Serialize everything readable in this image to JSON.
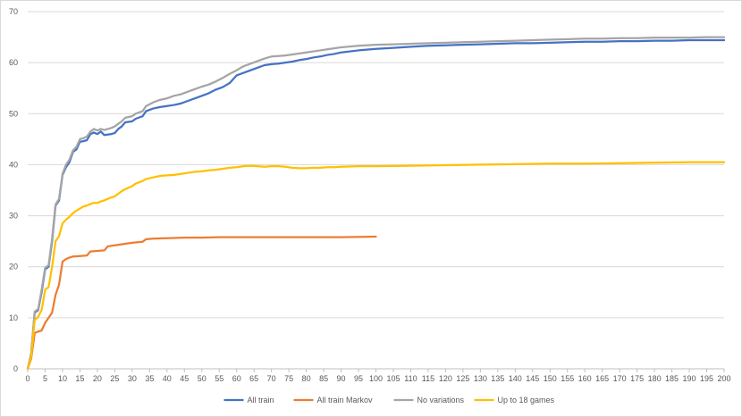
{
  "chart_data": {
    "type": "line",
    "title": "",
    "xlabel": "",
    "ylabel": "",
    "xlim": [
      0,
      200
    ],
    "ylim": [
      0,
      70
    ],
    "x_tick_step": 5,
    "y_ticks": [
      0,
      10,
      20,
      30,
      40,
      50,
      60,
      70
    ],
    "grid": "horizontal",
    "legend_position": "bottom",
    "series": [
      {
        "name": "All train",
        "color": "#4472c4",
        "points": [
          [
            0,
            0
          ],
          [
            1,
            3
          ],
          [
            2,
            11
          ],
          [
            3,
            11.5
          ],
          [
            4,
            15
          ],
          [
            5,
            19.5
          ],
          [
            6,
            20
          ],
          [
            7,
            25
          ],
          [
            8,
            32
          ],
          [
            9,
            33
          ],
          [
            10,
            38
          ],
          [
            11,
            39.5
          ],
          [
            12,
            40.5
          ],
          [
            13,
            42.5
          ],
          [
            14,
            43
          ],
          [
            15,
            44.5
          ],
          [
            16,
            44.6
          ],
          [
            17,
            44.8
          ],
          [
            18,
            46
          ],
          [
            19,
            46.3
          ],
          [
            20,
            46
          ],
          [
            21,
            46.5
          ],
          [
            22,
            45.8
          ],
          [
            24,
            46
          ],
          [
            25,
            46.2
          ],
          [
            26,
            47
          ],
          [
            27,
            47.5
          ],
          [
            28,
            48.3
          ],
          [
            30,
            48.5
          ],
          [
            31,
            49
          ],
          [
            33,
            49.5
          ],
          [
            34,
            50.5
          ],
          [
            36,
            51
          ],
          [
            38,
            51.3
          ],
          [
            40,
            51.5
          ],
          [
            42,
            51.7
          ],
          [
            44,
            52
          ],
          [
            46,
            52.5
          ],
          [
            48,
            53
          ],
          [
            50,
            53.5
          ],
          [
            52,
            54
          ],
          [
            54,
            54.7
          ],
          [
            56,
            55.2
          ],
          [
            58,
            56
          ],
          [
            60,
            57.5
          ],
          [
            62,
            58
          ],
          [
            64,
            58.5
          ],
          [
            66,
            59
          ],
          [
            68,
            59.5
          ],
          [
            70,
            59.7
          ],
          [
            72,
            59.8
          ],
          [
            74,
            60
          ],
          [
            76,
            60.2
          ],
          [
            78,
            60.5
          ],
          [
            80,
            60.7
          ],
          [
            82,
            61
          ],
          [
            84,
            61.2
          ],
          [
            86,
            61.5
          ],
          [
            88,
            61.7
          ],
          [
            90,
            62
          ],
          [
            95,
            62.4
          ],
          [
            100,
            62.7
          ],
          [
            105,
            62.9
          ],
          [
            110,
            63.1
          ],
          [
            115,
            63.3
          ],
          [
            120,
            63.4
          ],
          [
            125,
            63.5
          ],
          [
            130,
            63.6
          ],
          [
            135,
            63.7
          ],
          [
            140,
            63.8
          ],
          [
            145,
            63.8
          ],
          [
            150,
            63.9
          ],
          [
            155,
            64
          ],
          [
            160,
            64.1
          ],
          [
            165,
            64.1
          ],
          [
            170,
            64.2
          ],
          [
            175,
            64.2
          ],
          [
            180,
            64.3
          ],
          [
            185,
            64.3
          ],
          [
            190,
            64.4
          ],
          [
            195,
            64.4
          ],
          [
            200,
            64.4
          ]
        ]
      },
      {
        "name": "All train Markov",
        "color": "#ed7d31",
        "points": [
          [
            0,
            0
          ],
          [
            1,
            2
          ],
          [
            2,
            7
          ],
          [
            3,
            7.3
          ],
          [
            4,
            7.5
          ],
          [
            5,
            9
          ],
          [
            6,
            10
          ],
          [
            7,
            11
          ],
          [
            8,
            14.5
          ],
          [
            9,
            16.5
          ],
          [
            10,
            21
          ],
          [
            11,
            21.5
          ],
          [
            12,
            21.8
          ],
          [
            13,
            22
          ],
          [
            15,
            22.1
          ],
          [
            17,
            22.2
          ],
          [
            18,
            23
          ],
          [
            20,
            23.1
          ],
          [
            22,
            23.2
          ],
          [
            23,
            24
          ],
          [
            25,
            24.2
          ],
          [
            28,
            24.5
          ],
          [
            30,
            24.7
          ],
          [
            33,
            24.9
          ],
          [
            34,
            25.4
          ],
          [
            36,
            25.5
          ],
          [
            40,
            25.6
          ],
          [
            45,
            25.7
          ],
          [
            50,
            25.7
          ],
          [
            55,
            25.8
          ],
          [
            60,
            25.8
          ],
          [
            70,
            25.8
          ],
          [
            80,
            25.8
          ],
          [
            90,
            25.8
          ],
          [
            100,
            25.9
          ]
        ]
      },
      {
        "name": "No variations",
        "color": "#a5a5a5",
        "points": [
          [
            0,
            0
          ],
          [
            1,
            3
          ],
          [
            2,
            11.2
          ],
          [
            3,
            11.7
          ],
          [
            4,
            15.5
          ],
          [
            5,
            19.8
          ],
          [
            6,
            20.3
          ],
          [
            7,
            25.5
          ],
          [
            8,
            32.2
          ],
          [
            9,
            33.3
          ],
          [
            10,
            38.2
          ],
          [
            11,
            40
          ],
          [
            12,
            41
          ],
          [
            13,
            42.8
          ],
          [
            14,
            43.5
          ],
          [
            15,
            45
          ],
          [
            16,
            45.2
          ],
          [
            17,
            45.5
          ],
          [
            18,
            46.5
          ],
          [
            19,
            47
          ],
          [
            20,
            46.7
          ],
          [
            21,
            47
          ],
          [
            22,
            46.8
          ],
          [
            24,
            47.2
          ],
          [
            25,
            47.5
          ],
          [
            26,
            48
          ],
          [
            27,
            48.5
          ],
          [
            28,
            49.2
          ],
          [
            30,
            49.5
          ],
          [
            31,
            50
          ],
          [
            33,
            50.5
          ],
          [
            34,
            51.5
          ],
          [
            36,
            52.2
          ],
          [
            38,
            52.7
          ],
          [
            40,
            53
          ],
          [
            42,
            53.5
          ],
          [
            44,
            53.8
          ],
          [
            46,
            54.3
          ],
          [
            48,
            54.8
          ],
          [
            50,
            55.3
          ],
          [
            52,
            55.7
          ],
          [
            54,
            56.3
          ],
          [
            56,
            57
          ],
          [
            58,
            57.8
          ],
          [
            60,
            58.5
          ],
          [
            62,
            59.3
          ],
          [
            64,
            59.8
          ],
          [
            66,
            60.3
          ],
          [
            68,
            60.8
          ],
          [
            70,
            61.2
          ],
          [
            72,
            61.3
          ],
          [
            74,
            61.4
          ],
          [
            76,
            61.6
          ],
          [
            78,
            61.8
          ],
          [
            80,
            62
          ],
          [
            82,
            62.2
          ],
          [
            84,
            62.4
          ],
          [
            86,
            62.6
          ],
          [
            88,
            62.8
          ],
          [
            90,
            63
          ],
          [
            95,
            63.3
          ],
          [
            100,
            63.5
          ],
          [
            105,
            63.6
          ],
          [
            110,
            63.7
          ],
          [
            115,
            63.8
          ],
          [
            120,
            63.9
          ],
          [
            125,
            64
          ],
          [
            130,
            64.1
          ],
          [
            135,
            64.2
          ],
          [
            140,
            64.3
          ],
          [
            145,
            64.4
          ],
          [
            150,
            64.5
          ],
          [
            155,
            64.6
          ],
          [
            160,
            64.7
          ],
          [
            165,
            64.7
          ],
          [
            170,
            64.8
          ],
          [
            175,
            64.8
          ],
          [
            180,
            64.9
          ],
          [
            185,
            64.9
          ],
          [
            190,
            64.9
          ],
          [
            195,
            65
          ],
          [
            200,
            65
          ]
        ]
      },
      {
        "name": "Up to 18 games",
        "color": "#ffc000",
        "points": [
          [
            0,
            0
          ],
          [
            1,
            2.5
          ],
          [
            2,
            9.5
          ],
          [
            3,
            10.2
          ],
          [
            4,
            11.5
          ],
          [
            5,
            15.5
          ],
          [
            6,
            16
          ],
          [
            7,
            20
          ],
          [
            8,
            25
          ],
          [
            9,
            26
          ],
          [
            10,
            28.5
          ],
          [
            11,
            29.2
          ],
          [
            12,
            29.8
          ],
          [
            13,
            30.5
          ],
          [
            14,
            31
          ],
          [
            15,
            31.4
          ],
          [
            16,
            31.8
          ],
          [
            17,
            32
          ],
          [
            18,
            32.3
          ],
          [
            19,
            32.5
          ],
          [
            20,
            32.5
          ],
          [
            21,
            32.8
          ],
          [
            22,
            33
          ],
          [
            23,
            33.3
          ],
          [
            25,
            33.8
          ],
          [
            26,
            34.3
          ],
          [
            27,
            34.8
          ],
          [
            28,
            35.2
          ],
          [
            30,
            35.8
          ],
          [
            31,
            36.3
          ],
          [
            33,
            36.8
          ],
          [
            34,
            37.2
          ],
          [
            36,
            37.5
          ],
          [
            38,
            37.8
          ],
          [
            40,
            37.9
          ],
          [
            42,
            38
          ],
          [
            44,
            38.2
          ],
          [
            46,
            38.4
          ],
          [
            48,
            38.6
          ],
          [
            50,
            38.7
          ],
          [
            52,
            38.9
          ],
          [
            54,
            39
          ],
          [
            56,
            39.2
          ],
          [
            58,
            39.4
          ],
          [
            60,
            39.5
          ],
          [
            62,
            39.7
          ],
          [
            64,
            39.8
          ],
          [
            66,
            39.7
          ],
          [
            68,
            39.6
          ],
          [
            70,
            39.7
          ],
          [
            72,
            39.7
          ],
          [
            74,
            39.6
          ],
          [
            76,
            39.4
          ],
          [
            78,
            39.3
          ],
          [
            80,
            39.3
          ],
          [
            82,
            39.4
          ],
          [
            84,
            39.4
          ],
          [
            86,
            39.5
          ],
          [
            88,
            39.5
          ],
          [
            90,
            39.6
          ],
          [
            95,
            39.7
          ],
          [
            100,
            39.7
          ],
          [
            110,
            39.8
          ],
          [
            120,
            39.9
          ],
          [
            130,
            40
          ],
          [
            140,
            40.1
          ],
          [
            150,
            40.2
          ],
          [
            160,
            40.2
          ],
          [
            170,
            40.3
          ],
          [
            180,
            40.4
          ],
          [
            190,
            40.5
          ],
          [
            200,
            40.5
          ]
        ]
      }
    ]
  }
}
